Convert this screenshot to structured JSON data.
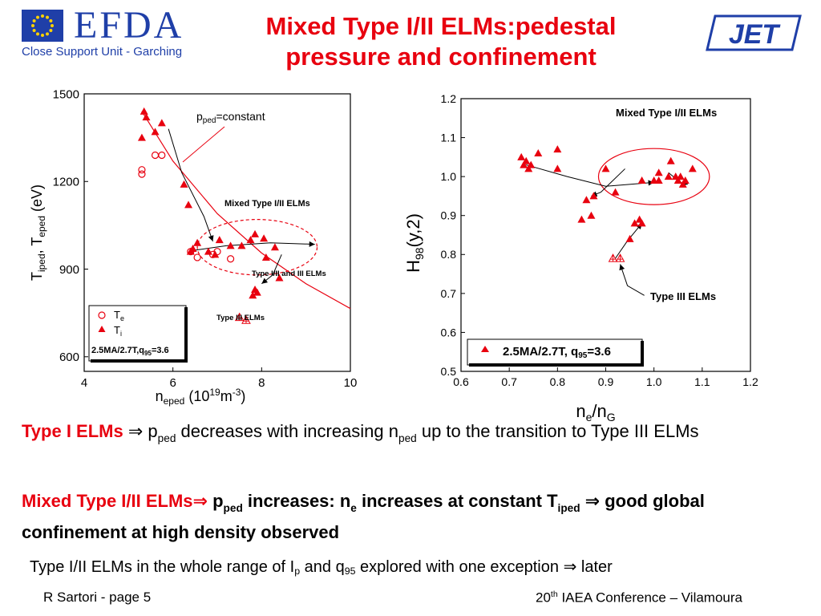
{
  "header": {
    "title_line1": "Mixed Type I/II ELMs:pedestal",
    "title_line2": "pressure and confinement",
    "efda_wordmark": "EFDA",
    "efda_subtitle": "Close Support Unit - Garching",
    "jet_logo": "JET",
    "colors": {
      "title": "#e8000f",
      "efda_blue": "#1f3fa8",
      "jet_blue": "#1f3fa8"
    }
  },
  "chart_data": [
    {
      "type": "scatter",
      "xlabel": "n_eped (10^19 m^-3)",
      "ylabel": "T_iped, T_eped (eV)",
      "xlim": [
        4,
        10
      ],
      "ylim": [
        550,
        1500
      ],
      "xticks": [
        "4",
        "6",
        "8",
        "10"
      ],
      "yticks": [
        "600",
        "900",
        "1200",
        "1500"
      ],
      "legend_position": "bottom-left",
      "legend": {
        "te_label": "T",
        "te_sub": "e",
        "ti_label": "T",
        "ti_sub": "i",
        "note_prefix": "2.5MA/2.7T,q",
        "note_sub": "95",
        "note_suffix": "=3.6"
      },
      "series": [
        {
          "name": "Te",
          "marker": "open-circle",
          "color": "#e8000f",
          "x": [
            5.3,
            5.3,
            5.6,
            5.75,
            6.4,
            6.55,
            6.9,
            7.0,
            7.3
          ],
          "y": [
            1225,
            1240,
            1290,
            1290,
            960,
            940,
            950,
            960,
            935
          ]
        },
        {
          "name": "Ti",
          "marker": "filled-triangle",
          "color": "#e8000f",
          "x": [
            5.35,
            5.4,
            5.6,
            5.75,
            5.3,
            6.25,
            6.35,
            6.45,
            6.55,
            6.8,
            6.95,
            7.05,
            7.3,
            7.55,
            7.75,
            7.85,
            8.05,
            8.3,
            6.4,
            8.1,
            8.4,
            7.8,
            7.9,
            7.85
          ],
          "y": [
            1440,
            1420,
            1370,
            1400,
            1350,
            1190,
            1120,
            970,
            990,
            960,
            950,
            1000,
            980,
            980,
            1000,
            1020,
            1005,
            975,
            960,
            940,
            870,
            810,
            820,
            830
          ]
        },
        {
          "name": "Type III Ti",
          "marker": "open-triangle-cross",
          "color": "#e8000f",
          "x": [
            7.5,
            7.65
          ],
          "y": [
            735,
            725
          ]
        }
      ],
      "fit_curve": {
        "label_prefix": "p",
        "label_sub": "ped",
        "label_suffix": "=constant",
        "x": [
          5.3,
          6.0,
          7.0,
          8.0,
          9.0,
          10.0
        ],
        "y": [
          1440,
          1270,
          1090,
          955,
          850,
          765
        ]
      },
      "trajectories": [
        {
          "x": [
            5.9,
            6.2,
            6.7,
            6.9
          ],
          "y": [
            1380,
            1230,
            1080,
            995
          ]
        },
        {
          "x": [
            6.5,
            7.2,
            8.2,
            9.2
          ],
          "y": [
            965,
            980,
            990,
            985
          ]
        },
        {
          "x": [
            8.45,
            8.25,
            8.0
          ],
          "y": [
            950,
            880,
            850
          ]
        }
      ],
      "annotation_ellipse": {
        "cx": 7.9,
        "cy": 975,
        "rx": 1.35,
        "ry": 95
      },
      "annotations": [
        "Mixed Type I/II ELMs",
        "Type I/II and III ELMs",
        "Type III ELMs"
      ]
    },
    {
      "type": "scatter",
      "xlabel": "n_e/n_G",
      "ylabel": "H98(y,2)",
      "xlim": [
        0.6,
        1.2
      ],
      "ylim": [
        0.5,
        1.2
      ],
      "xticks": [
        "0.6",
        "0.7",
        "0.8",
        "0.9",
        "1.0",
        "1.1",
        "1.2"
      ],
      "yticks": [
        "0.5",
        "0.6",
        "0.7",
        "0.8",
        "0.9",
        "1.0",
        "1.1",
        "1.2"
      ],
      "legend_position": "bottom-right",
      "legend": {
        "label_prefix": "2.5MA/2.7T, q",
        "label_sub": "95",
        "label_suffix": "=3.6"
      },
      "series": [
        {
          "name": "Mixed Type I/II",
          "marker": "filled-triangle",
          "color": "#e8000f",
          "x": [
            0.725,
            0.73,
            0.735,
            0.74,
            0.745,
            0.76,
            0.8,
            0.8,
            0.85,
            0.86,
            0.87,
            0.875,
            0.9,
            0.92,
            0.95,
            0.96,
            0.97,
            0.975,
            0.975,
            1.0,
            1.01,
            1.03,
            1.035,
            1.05,
            1.055,
            1.06,
            1.065,
            1.08,
            1.045,
            1.01
          ],
          "y": [
            1.05,
            1.03,
            1.04,
            1.02,
            1.03,
            1.06,
            1.07,
            1.02,
            0.89,
            0.94,
            0.9,
            0.95,
            1.02,
            0.96,
            0.84,
            0.88,
            0.89,
            0.88,
            0.99,
            0.99,
            1.01,
            1.0,
            1.04,
            0.99,
            1.0,
            0.98,
            0.99,
            1.02,
            1.0,
            0.99
          ]
        },
        {
          "name": "Type III",
          "marker": "open-triangle-cross",
          "color": "#e8000f",
          "x": [
            0.915,
            0.93
          ],
          "y": [
            0.79,
            0.79
          ]
        }
      ],
      "trajectories": [
        {
          "x": [
            0.735,
            0.82,
            0.9,
            1.0
          ],
          "y": [
            1.03,
            1.0,
            0.975,
            0.985
          ]
        },
        {
          "x": [
            0.92,
            0.945,
            0.975
          ],
          "y": [
            0.79,
            0.835,
            0.88
          ]
        },
        {
          "x": [
            0.94,
            0.89,
            0.87
          ],
          "y": [
            1.02,
            0.96,
            0.95
          ]
        },
        {
          "x": [
            1.03,
            1.055,
            1.07
          ],
          "y": [
            1.01,
            0.985,
            0.98
          ]
        },
        {
          "x": [
            0.98,
            0.945,
            0.93
          ],
          "y": [
            0.695,
            0.72,
            0.775
          ]
        }
      ],
      "annotation_ellipse": {
        "cx": 1.0,
        "cy": 1.0,
        "rx": 0.115,
        "ry": 0.072
      },
      "annotations": [
        "Mixed Type I/II ELMs",
        "Type III ELMs"
      ]
    }
  ],
  "body": {
    "p1_lead": "Type I ELMs",
    "arrow": "⇒",
    "p1_p": "p",
    "p1_ped_sub": "ped",
    "p1_mid": " decreases with increasing n",
    "p1_ped_sub2": "ped",
    "p1_end": " up to the transition to Type III ELMs",
    "p2_lead": "Mixed Type I/II ELMs",
    "p2_p": "p",
    "p2_ped_sub": "ped",
    "p2_mid": " increases: n",
    "p2_e_sub": "e",
    "p2_mid2": " increases at constant T",
    "p2_iped_sub": "iped",
    "p2_end": " good global confinement at high density observed",
    "p3_a": "Type I/II ELMs in the whole range of I",
    "p3_p_sub": "p",
    "p3_b": " and q",
    "p3_q_sub": "95",
    "p3_c": " explored with one exception ",
    "p3_d": " later"
  },
  "footer": {
    "left": "R Sartori  - page 5",
    "right_pre": "20",
    "right_sup": "th",
    "right_post": " IAEA Conference – Vilamoura"
  }
}
